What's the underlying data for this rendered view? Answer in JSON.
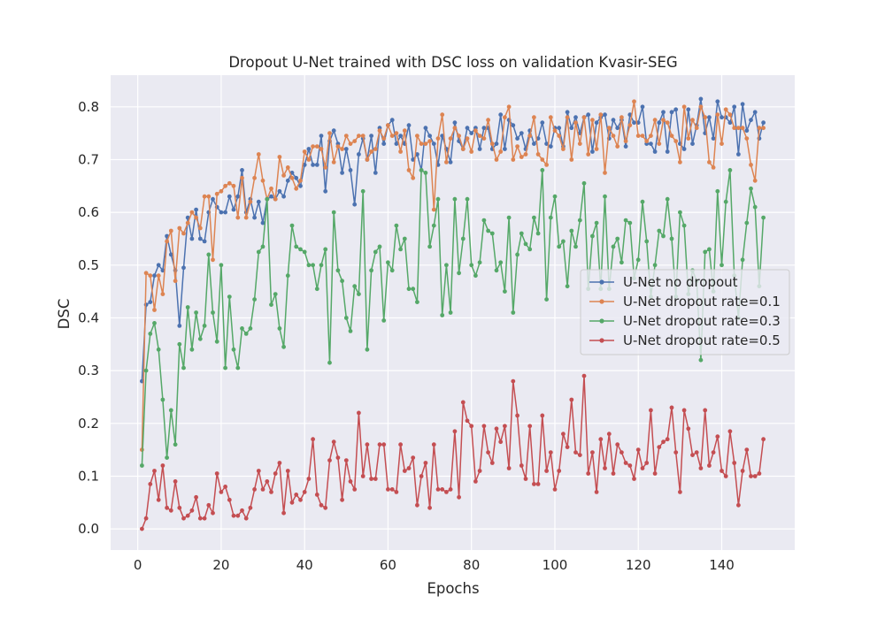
{
  "chart_data": {
    "type": "line",
    "title": "Dropout U-Net trained with DSC loss on validation Kvasir-SEG",
    "xlabel": "Epochs",
    "ylabel": "DSC",
    "xlim": [
      -6.5,
      157.5
    ],
    "ylim": [
      -0.04,
      0.86
    ],
    "xticks": [
      0,
      20,
      40,
      60,
      80,
      100,
      120,
      140
    ],
    "yticks": [
      0.0,
      0.1,
      0.2,
      0.3,
      0.4,
      0.5,
      0.6,
      0.7,
      0.8
    ],
    "grid": true,
    "legend_position": "center-right",
    "x": [
      1,
      2,
      3,
      4,
      5,
      6,
      7,
      8,
      9,
      10,
      11,
      12,
      13,
      14,
      15,
      16,
      17,
      18,
      19,
      20,
      21,
      22,
      23,
      24,
      25,
      26,
      27,
      28,
      29,
      30,
      31,
      32,
      33,
      34,
      35,
      36,
      37,
      38,
      39,
      40,
      41,
      42,
      43,
      44,
      45,
      46,
      47,
      48,
      49,
      50,
      51,
      52,
      53,
      54,
      55,
      56,
      57,
      58,
      59,
      60,
      61,
      62,
      63,
      64,
      65,
      66,
      67,
      68,
      69,
      70,
      71,
      72,
      73,
      74,
      75,
      76,
      77,
      78,
      79,
      80,
      81,
      82,
      83,
      84,
      85,
      86,
      87,
      88,
      89,
      90,
      91,
      92,
      93,
      94,
      95,
      96,
      97,
      98,
      99,
      100,
      101,
      102,
      103,
      104,
      105,
      106,
      107,
      108,
      109,
      110,
      111,
      112,
      113,
      114,
      115,
      116,
      117,
      118,
      119,
      120,
      121,
      122,
      123,
      124,
      125,
      126,
      127,
      128,
      129,
      130,
      131,
      132,
      133,
      134,
      135,
      136,
      137,
      138,
      139,
      140,
      141,
      142,
      143,
      144,
      145,
      146,
      147,
      148,
      149,
      150
    ],
    "series": [
      {
        "name": "U-Net no dropout",
        "color": "#4c72b0",
        "values": [
          0.28,
          0.425,
          0.43,
          0.48,
          0.5,
          0.49,
          0.555,
          0.52,
          0.49,
          0.385,
          0.495,
          0.59,
          0.55,
          0.605,
          0.55,
          0.545,
          0.6,
          0.625,
          0.61,
          0.6,
          0.6,
          0.63,
          0.605,
          0.63,
          0.68,
          0.6,
          0.625,
          0.59,
          0.62,
          0.58,
          0.625,
          0.63,
          0.625,
          0.64,
          0.63,
          0.66,
          0.675,
          0.665,
          0.65,
          0.69,
          0.72,
          0.69,
          0.69,
          0.745,
          0.64,
          0.735,
          0.755,
          0.73,
          0.675,
          0.72,
          0.68,
          0.615,
          0.71,
          0.74,
          0.7,
          0.745,
          0.675,
          0.76,
          0.73,
          0.765,
          0.775,
          0.73,
          0.745,
          0.73,
          0.765,
          0.7,
          0.71,
          0.68,
          0.76,
          0.745,
          0.73,
          0.69,
          0.745,
          0.72,
          0.695,
          0.77,
          0.735,
          0.72,
          0.76,
          0.75,
          0.76,
          0.72,
          0.76,
          0.76,
          0.72,
          0.73,
          0.785,
          0.72,
          0.775,
          0.765,
          0.74,
          0.75,
          0.72,
          0.755,
          0.73,
          0.74,
          0.77,
          0.73,
          0.725,
          0.76,
          0.76,
          0.725,
          0.79,
          0.76,
          0.78,
          0.75,
          0.78,
          0.785,
          0.715,
          0.77,
          0.78,
          0.785,
          0.74,
          0.775,
          0.76,
          0.775,
          0.725,
          0.785,
          0.77,
          0.77,
          0.8,
          0.73,
          0.73,
          0.715,
          0.77,
          0.79,
          0.715,
          0.79,
          0.795,
          0.73,
          0.72,
          0.795,
          0.73,
          0.765,
          0.815,
          0.75,
          0.78,
          0.74,
          0.81,
          0.78,
          0.78,
          0.77,
          0.8,
          0.71,
          0.805,
          0.755,
          0.775,
          0.79,
          0.74,
          0.77
        ]
      },
      {
        "name": "U-Net dropout rate=0.1",
        "color": "#dd8452",
        "values": [
          0.15,
          0.485,
          0.48,
          0.415,
          0.48,
          0.445,
          0.545,
          0.565,
          0.47,
          0.57,
          0.56,
          0.58,
          0.6,
          0.59,
          0.57,
          0.63,
          0.63,
          0.51,
          0.635,
          0.64,
          0.65,
          0.655,
          0.65,
          0.59,
          0.665,
          0.59,
          0.62,
          0.665,
          0.71,
          0.66,
          0.625,
          0.645,
          0.625,
          0.705,
          0.67,
          0.685,
          0.665,
          0.645,
          0.66,
          0.715,
          0.7,
          0.725,
          0.725,
          0.72,
          0.685,
          0.75,
          0.695,
          0.725,
          0.72,
          0.745,
          0.73,
          0.735,
          0.745,
          0.745,
          0.7,
          0.715,
          0.72,
          0.755,
          0.74,
          0.765,
          0.745,
          0.75,
          0.715,
          0.755,
          0.68,
          0.665,
          0.745,
          0.73,
          0.73,
          0.735,
          0.605,
          0.74,
          0.785,
          0.695,
          0.74,
          0.76,
          0.745,
          0.72,
          0.74,
          0.715,
          0.755,
          0.745,
          0.74,
          0.775,
          0.73,
          0.7,
          0.715,
          0.78,
          0.8,
          0.7,
          0.725,
          0.705,
          0.71,
          0.745,
          0.78,
          0.71,
          0.7,
          0.69,
          0.78,
          0.755,
          0.745,
          0.72,
          0.78,
          0.7,
          0.77,
          0.73,
          0.78,
          0.71,
          0.775,
          0.72,
          0.785,
          0.675,
          0.76,
          0.745,
          0.725,
          0.78,
          0.735,
          0.765,
          0.81,
          0.745,
          0.745,
          0.735,
          0.745,
          0.775,
          0.73,
          0.775,
          0.77,
          0.745,
          0.735,
          0.695,
          0.8,
          0.74,
          0.775,
          0.76,
          0.8,
          0.78,
          0.695,
          0.685,
          0.785,
          0.73,
          0.795,
          0.785,
          0.76,
          0.76,
          0.76,
          0.74,
          0.69,
          0.66,
          0.76,
          0.76
        ]
      },
      {
        "name": "U-Net dropout rate=0.3",
        "color": "#55a868",
        "values": [
          0.12,
          0.3,
          0.37,
          0.39,
          0.34,
          0.245,
          0.135,
          0.225,
          0.16,
          0.35,
          0.305,
          0.42,
          0.34,
          0.41,
          0.36,
          0.385,
          0.52,
          0.41,
          0.355,
          0.5,
          0.305,
          0.44,
          0.34,
          0.305,
          0.38,
          0.37,
          0.38,
          0.435,
          0.525,
          0.535,
          0.625,
          0.425,
          0.445,
          0.38,
          0.345,
          0.48,
          0.575,
          0.535,
          0.53,
          0.525,
          0.5,
          0.5,
          0.455,
          0.5,
          0.53,
          0.315,
          0.6,
          0.49,
          0.47,
          0.4,
          0.375,
          0.46,
          0.445,
          0.64,
          0.34,
          0.49,
          0.525,
          0.535,
          0.395,
          0.505,
          0.49,
          0.575,
          0.53,
          0.55,
          0.455,
          0.455,
          0.43,
          0.68,
          0.675,
          0.535,
          0.575,
          0.625,
          0.405,
          0.5,
          0.41,
          0.625,
          0.485,
          0.55,
          0.625,
          0.5,
          0.48,
          0.505,
          0.585,
          0.565,
          0.56,
          0.49,
          0.505,
          0.45,
          0.59,
          0.41,
          0.52,
          0.56,
          0.54,
          0.53,
          0.59,
          0.56,
          0.68,
          0.435,
          0.59,
          0.63,
          0.535,
          0.545,
          0.46,
          0.565,
          0.535,
          0.585,
          0.655,
          0.455,
          0.555,
          0.58,
          0.455,
          0.63,
          0.455,
          0.535,
          0.55,
          0.505,
          0.585,
          0.58,
          0.475,
          0.51,
          0.62,
          0.545,
          0.44,
          0.5,
          0.565,
          0.555,
          0.625,
          0.55,
          0.44,
          0.6,
          0.575,
          0.445,
          0.49,
          0.47,
          0.32,
          0.525,
          0.53,
          0.45,
          0.64,
          0.5,
          0.62,
          0.68,
          0.48,
          0.4,
          0.51,
          0.58,
          0.645,
          0.61,
          0.46,
          0.59
        ]
      },
      {
        "name": "U-Net dropout rate=0.5",
        "color": "#c44e52",
        "values": [
          0.0,
          0.02,
          0.085,
          0.11,
          0.055,
          0.12,
          0.04,
          0.035,
          0.09,
          0.04,
          0.02,
          0.025,
          0.035,
          0.06,
          0.02,
          0.02,
          0.045,
          0.03,
          0.105,
          0.07,
          0.08,
          0.055,
          0.025,
          0.025,
          0.035,
          0.02,
          0.04,
          0.075,
          0.11,
          0.075,
          0.09,
          0.07,
          0.105,
          0.125,
          0.03,
          0.11,
          0.05,
          0.065,
          0.055,
          0.07,
          0.095,
          0.17,
          0.065,
          0.045,
          0.04,
          0.13,
          0.165,
          0.135,
          0.055,
          0.13,
          0.09,
          0.075,
          0.22,
          0.1,
          0.16,
          0.095,
          0.095,
          0.16,
          0.16,
          0.075,
          0.075,
          0.07,
          0.16,
          0.11,
          0.115,
          0.135,
          0.045,
          0.1,
          0.125,
          0.04,
          0.16,
          0.075,
          0.075,
          0.07,
          0.075,
          0.185,
          0.06,
          0.24,
          0.205,
          0.195,
          0.09,
          0.11,
          0.195,
          0.145,
          0.125,
          0.19,
          0.165,
          0.195,
          0.115,
          0.28,
          0.215,
          0.12,
          0.095,
          0.195,
          0.085,
          0.085,
          0.215,
          0.11,
          0.145,
          0.075,
          0.11,
          0.18,
          0.155,
          0.245,
          0.145,
          0.14,
          0.29,
          0.105,
          0.145,
          0.07,
          0.17,
          0.115,
          0.18,
          0.105,
          0.16,
          0.145,
          0.125,
          0.12,
          0.095,
          0.15,
          0.115,
          0.125,
          0.225,
          0.105,
          0.155,
          0.165,
          0.17,
          0.23,
          0.145,
          0.07,
          0.225,
          0.19,
          0.14,
          0.145,
          0.115,
          0.225,
          0.12,
          0.145,
          0.175,
          0.11,
          0.1,
          0.185,
          0.125,
          0.045,
          0.11,
          0.15,
          0.1,
          0.1,
          0.105,
          0.17
        ]
      }
    ]
  }
}
